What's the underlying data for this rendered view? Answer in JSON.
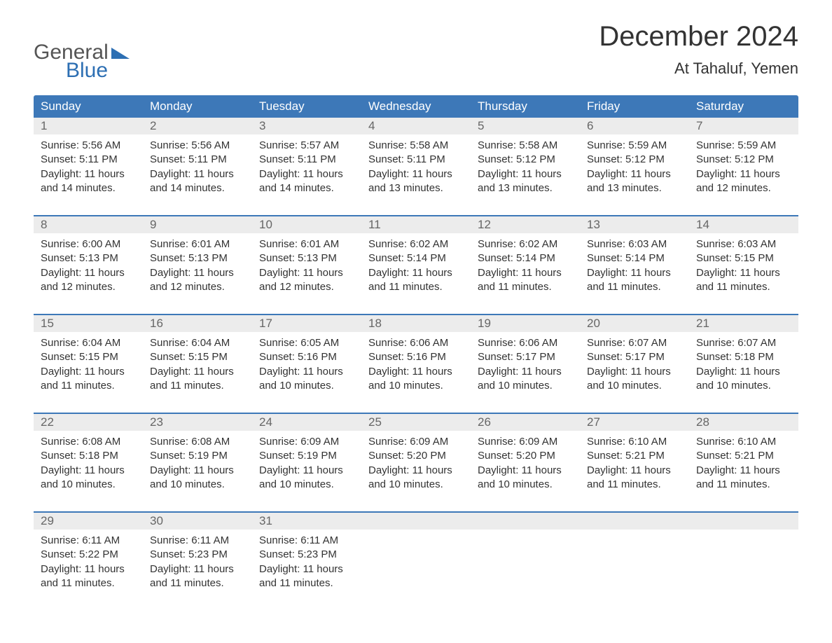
{
  "logo": {
    "word1": "General",
    "word2": "Blue"
  },
  "title": "December 2024",
  "location": "At Tahaluf, Yemen",
  "colors": {
    "header_bg": "#3d78b8",
    "header_text": "#ffffff",
    "daynum_bg": "#ececec",
    "daynum_text": "#666666",
    "body_text": "#333333",
    "accent": "#2d6fb3"
  },
  "weekdays": [
    "Sunday",
    "Monday",
    "Tuesday",
    "Wednesday",
    "Thursday",
    "Friday",
    "Saturday"
  ],
  "weeks": [
    [
      {
        "n": "1",
        "sr": "Sunrise: 5:56 AM",
        "ss": "Sunset: 5:11 PM",
        "d1": "Daylight: 11 hours",
        "d2": "and 14 minutes."
      },
      {
        "n": "2",
        "sr": "Sunrise: 5:56 AM",
        "ss": "Sunset: 5:11 PM",
        "d1": "Daylight: 11 hours",
        "d2": "and 14 minutes."
      },
      {
        "n": "3",
        "sr": "Sunrise: 5:57 AM",
        "ss": "Sunset: 5:11 PM",
        "d1": "Daylight: 11 hours",
        "d2": "and 14 minutes."
      },
      {
        "n": "4",
        "sr": "Sunrise: 5:58 AM",
        "ss": "Sunset: 5:11 PM",
        "d1": "Daylight: 11 hours",
        "d2": "and 13 minutes."
      },
      {
        "n": "5",
        "sr": "Sunrise: 5:58 AM",
        "ss": "Sunset: 5:12 PM",
        "d1": "Daylight: 11 hours",
        "d2": "and 13 minutes."
      },
      {
        "n": "6",
        "sr": "Sunrise: 5:59 AM",
        "ss": "Sunset: 5:12 PM",
        "d1": "Daylight: 11 hours",
        "d2": "and 13 minutes."
      },
      {
        "n": "7",
        "sr": "Sunrise: 5:59 AM",
        "ss": "Sunset: 5:12 PM",
        "d1": "Daylight: 11 hours",
        "d2": "and 12 minutes."
      }
    ],
    [
      {
        "n": "8",
        "sr": "Sunrise: 6:00 AM",
        "ss": "Sunset: 5:13 PM",
        "d1": "Daylight: 11 hours",
        "d2": "and 12 minutes."
      },
      {
        "n": "9",
        "sr": "Sunrise: 6:01 AM",
        "ss": "Sunset: 5:13 PM",
        "d1": "Daylight: 11 hours",
        "d2": "and 12 minutes."
      },
      {
        "n": "10",
        "sr": "Sunrise: 6:01 AM",
        "ss": "Sunset: 5:13 PM",
        "d1": "Daylight: 11 hours",
        "d2": "and 12 minutes."
      },
      {
        "n": "11",
        "sr": "Sunrise: 6:02 AM",
        "ss": "Sunset: 5:14 PM",
        "d1": "Daylight: 11 hours",
        "d2": "and 11 minutes."
      },
      {
        "n": "12",
        "sr": "Sunrise: 6:02 AM",
        "ss": "Sunset: 5:14 PM",
        "d1": "Daylight: 11 hours",
        "d2": "and 11 minutes."
      },
      {
        "n": "13",
        "sr": "Sunrise: 6:03 AM",
        "ss": "Sunset: 5:14 PM",
        "d1": "Daylight: 11 hours",
        "d2": "and 11 minutes."
      },
      {
        "n": "14",
        "sr": "Sunrise: 6:03 AM",
        "ss": "Sunset: 5:15 PM",
        "d1": "Daylight: 11 hours",
        "d2": "and 11 minutes."
      }
    ],
    [
      {
        "n": "15",
        "sr": "Sunrise: 6:04 AM",
        "ss": "Sunset: 5:15 PM",
        "d1": "Daylight: 11 hours",
        "d2": "and 11 minutes."
      },
      {
        "n": "16",
        "sr": "Sunrise: 6:04 AM",
        "ss": "Sunset: 5:15 PM",
        "d1": "Daylight: 11 hours",
        "d2": "and 11 minutes."
      },
      {
        "n": "17",
        "sr": "Sunrise: 6:05 AM",
        "ss": "Sunset: 5:16 PM",
        "d1": "Daylight: 11 hours",
        "d2": "and 10 minutes."
      },
      {
        "n": "18",
        "sr": "Sunrise: 6:06 AM",
        "ss": "Sunset: 5:16 PM",
        "d1": "Daylight: 11 hours",
        "d2": "and 10 minutes."
      },
      {
        "n": "19",
        "sr": "Sunrise: 6:06 AM",
        "ss": "Sunset: 5:17 PM",
        "d1": "Daylight: 11 hours",
        "d2": "and 10 minutes."
      },
      {
        "n": "20",
        "sr": "Sunrise: 6:07 AM",
        "ss": "Sunset: 5:17 PM",
        "d1": "Daylight: 11 hours",
        "d2": "and 10 minutes."
      },
      {
        "n": "21",
        "sr": "Sunrise: 6:07 AM",
        "ss": "Sunset: 5:18 PM",
        "d1": "Daylight: 11 hours",
        "d2": "and 10 minutes."
      }
    ],
    [
      {
        "n": "22",
        "sr": "Sunrise: 6:08 AM",
        "ss": "Sunset: 5:18 PM",
        "d1": "Daylight: 11 hours",
        "d2": "and 10 minutes."
      },
      {
        "n": "23",
        "sr": "Sunrise: 6:08 AM",
        "ss": "Sunset: 5:19 PM",
        "d1": "Daylight: 11 hours",
        "d2": "and 10 minutes."
      },
      {
        "n": "24",
        "sr": "Sunrise: 6:09 AM",
        "ss": "Sunset: 5:19 PM",
        "d1": "Daylight: 11 hours",
        "d2": "and 10 minutes."
      },
      {
        "n": "25",
        "sr": "Sunrise: 6:09 AM",
        "ss": "Sunset: 5:20 PM",
        "d1": "Daylight: 11 hours",
        "d2": "and 10 minutes."
      },
      {
        "n": "26",
        "sr": "Sunrise: 6:09 AM",
        "ss": "Sunset: 5:20 PM",
        "d1": "Daylight: 11 hours",
        "d2": "and 10 minutes."
      },
      {
        "n": "27",
        "sr": "Sunrise: 6:10 AM",
        "ss": "Sunset: 5:21 PM",
        "d1": "Daylight: 11 hours",
        "d2": "and 11 minutes."
      },
      {
        "n": "28",
        "sr": "Sunrise: 6:10 AM",
        "ss": "Sunset: 5:21 PM",
        "d1": "Daylight: 11 hours",
        "d2": "and 11 minutes."
      }
    ],
    [
      {
        "n": "29",
        "sr": "Sunrise: 6:11 AM",
        "ss": "Sunset: 5:22 PM",
        "d1": "Daylight: 11 hours",
        "d2": "and 11 minutes."
      },
      {
        "n": "30",
        "sr": "Sunrise: 6:11 AM",
        "ss": "Sunset: 5:23 PM",
        "d1": "Daylight: 11 hours",
        "d2": "and 11 minutes."
      },
      {
        "n": "31",
        "sr": "Sunrise: 6:11 AM",
        "ss": "Sunset: 5:23 PM",
        "d1": "Daylight: 11 hours",
        "d2": "and 11 minutes."
      },
      null,
      null,
      null,
      null
    ]
  ]
}
